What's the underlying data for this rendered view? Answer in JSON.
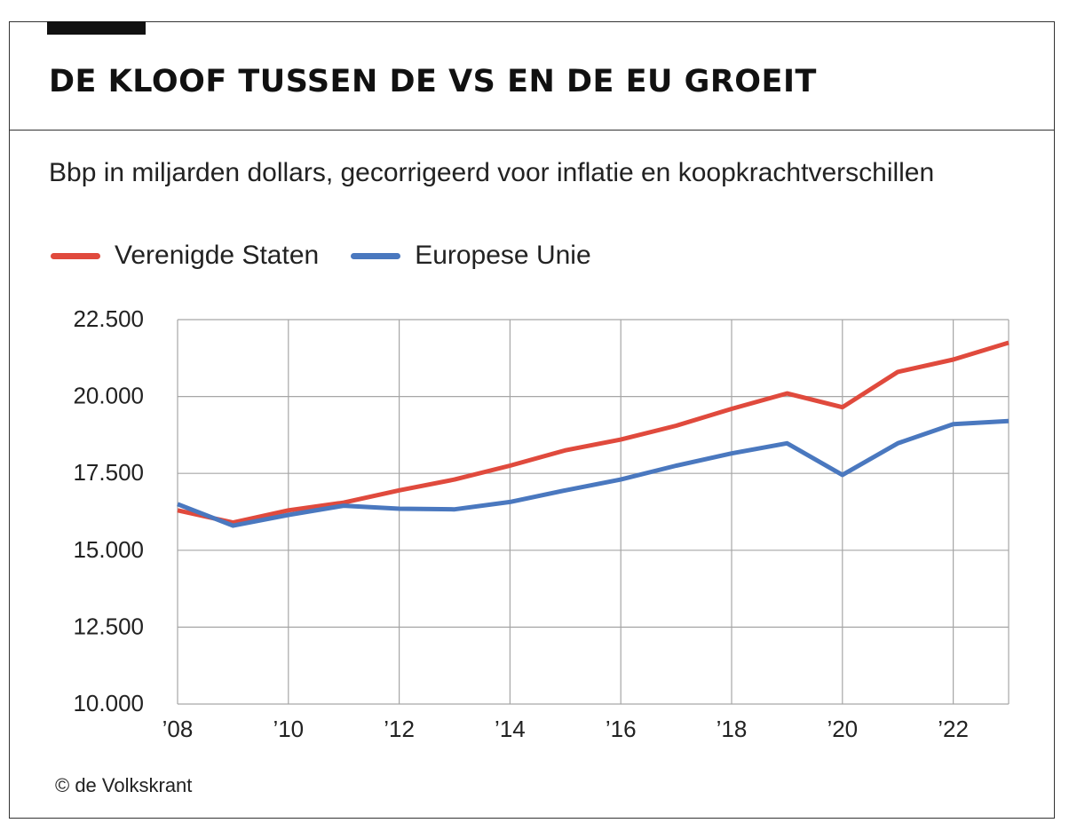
{
  "header": {
    "title": "DE KLOOF TUSSEN DE VS EN DE EU GROEIT",
    "subtitle": "Bbp in miljarden dollars, gecorrigeerd voor inflatie en koopkrachtverschillen"
  },
  "footer": {
    "credit": "© de Volkskrant"
  },
  "colors": {
    "us": "#e04a3d",
    "eu": "#4a78bf",
    "grid": "#a6a6a6"
  },
  "chart_data": {
    "type": "line",
    "title": "DE KLOOF TUSSEN DE VS EN DE EU GROEIT",
    "subtitle": "Bbp in miljarden dollars, gecorrigeerd voor inflatie en koopkrachtverschillen",
    "xlabel": "",
    "ylabel": "",
    "x": [
      2008,
      2009,
      2010,
      2011,
      2012,
      2013,
      2014,
      2015,
      2016,
      2017,
      2018,
      2019,
      2020,
      2021,
      2022,
      2023
    ],
    "xlim": [
      2008,
      2023
    ],
    "ylim": [
      10000,
      22500
    ],
    "xticks": [
      {
        "value": 2008,
        "label": "’08"
      },
      {
        "value": 2010,
        "label": "’10"
      },
      {
        "value": 2012,
        "label": "’12"
      },
      {
        "value": 2014,
        "label": "’14"
      },
      {
        "value": 2016,
        "label": "’16"
      },
      {
        "value": 2018,
        "label": "’18"
      },
      {
        "value": 2020,
        "label": "’20"
      },
      {
        "value": 2022,
        "label": "’22"
      }
    ],
    "yticks": [
      {
        "value": 10000,
        "label": "10.000"
      },
      {
        "value": 12500,
        "label": "12.500"
      },
      {
        "value": 15000,
        "label": "15.000"
      },
      {
        "value": 17500,
        "label": "17.500"
      },
      {
        "value": 20000,
        "label": "20.000"
      },
      {
        "value": 22500,
        "label": "22.500"
      }
    ],
    "grid": true,
    "legend_position": "top-left",
    "series": [
      {
        "name": "Verenigde Staten",
        "key": "us",
        "values": [
          16300,
          15900,
          16300,
          16550,
          16950,
          17300,
          17750,
          18250,
          18600,
          19050,
          19600,
          20100,
          19650,
          20800,
          21200,
          21750
        ]
      },
      {
        "name": "Europese Unie",
        "key": "eu",
        "values": [
          16500,
          15800,
          16150,
          16450,
          16350,
          16330,
          16570,
          16950,
          17300,
          17750,
          18150,
          18480,
          17450,
          18480,
          19100,
          19200
        ]
      }
    ]
  }
}
